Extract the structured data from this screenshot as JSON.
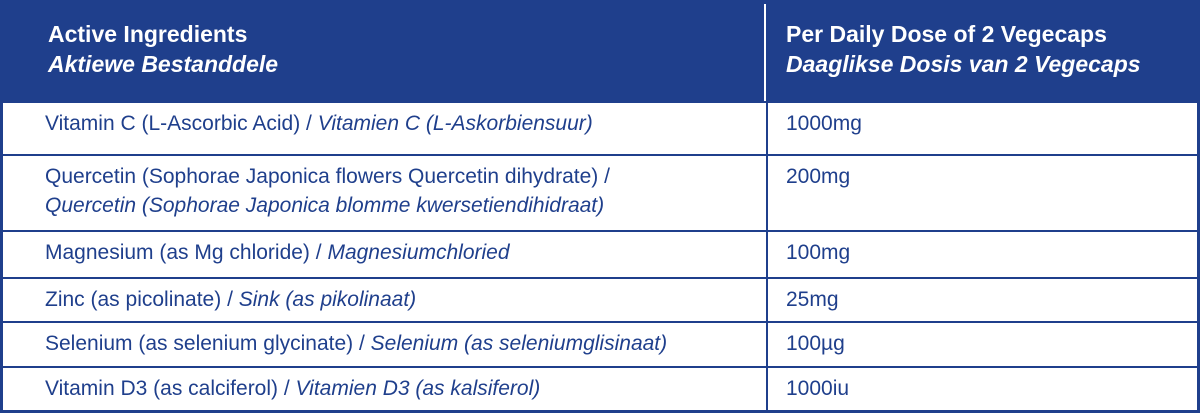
{
  "header": {
    "ingredients_en": "Active Ingredients",
    "ingredients_af": "Aktiewe Bestanddele",
    "dose_en": "Per Daily Dose of 2 Vegecaps",
    "dose_af": "Daaglikse Dosis van 2 Vegecaps"
  },
  "rows": [
    {
      "en": "Vitamin C (L-Ascorbic Acid)",
      "sep": " / ",
      "af": "Vitamien C (L-Askorbiensuur)",
      "dose": "1000mg"
    },
    {
      "en": "Quercetin (Sophorae Japonica flowers Quercetin dihydrate) /",
      "af": "Quercetin (Sophorae Japonica blomme kwersetiendihidraat)",
      "dose": "200mg"
    },
    {
      "en": "Magnesium (as Mg chloride)",
      "sep": " / ",
      "af": "Magnesiumchloried",
      "dose": "100mg"
    },
    {
      "en": "Zinc (as picolinate)",
      "sep": " / ",
      "af": "Sink (as pikolinaat)",
      "dose": "25mg"
    },
    {
      "en": "Selenium (as selenium glycinate)",
      "sep": " / ",
      "af": "Selenium (as seleniumglisinaat)",
      "dose": "100µg"
    },
    {
      "en": "Vitamin D3 (as calciferol)",
      "sep": " / ",
      "af": "Vitamien D3 (as kalsiferol)",
      "dose": "1000iu"
    }
  ],
  "colors": {
    "brand_blue": "#1f3f8c",
    "background": "#ffffff"
  }
}
